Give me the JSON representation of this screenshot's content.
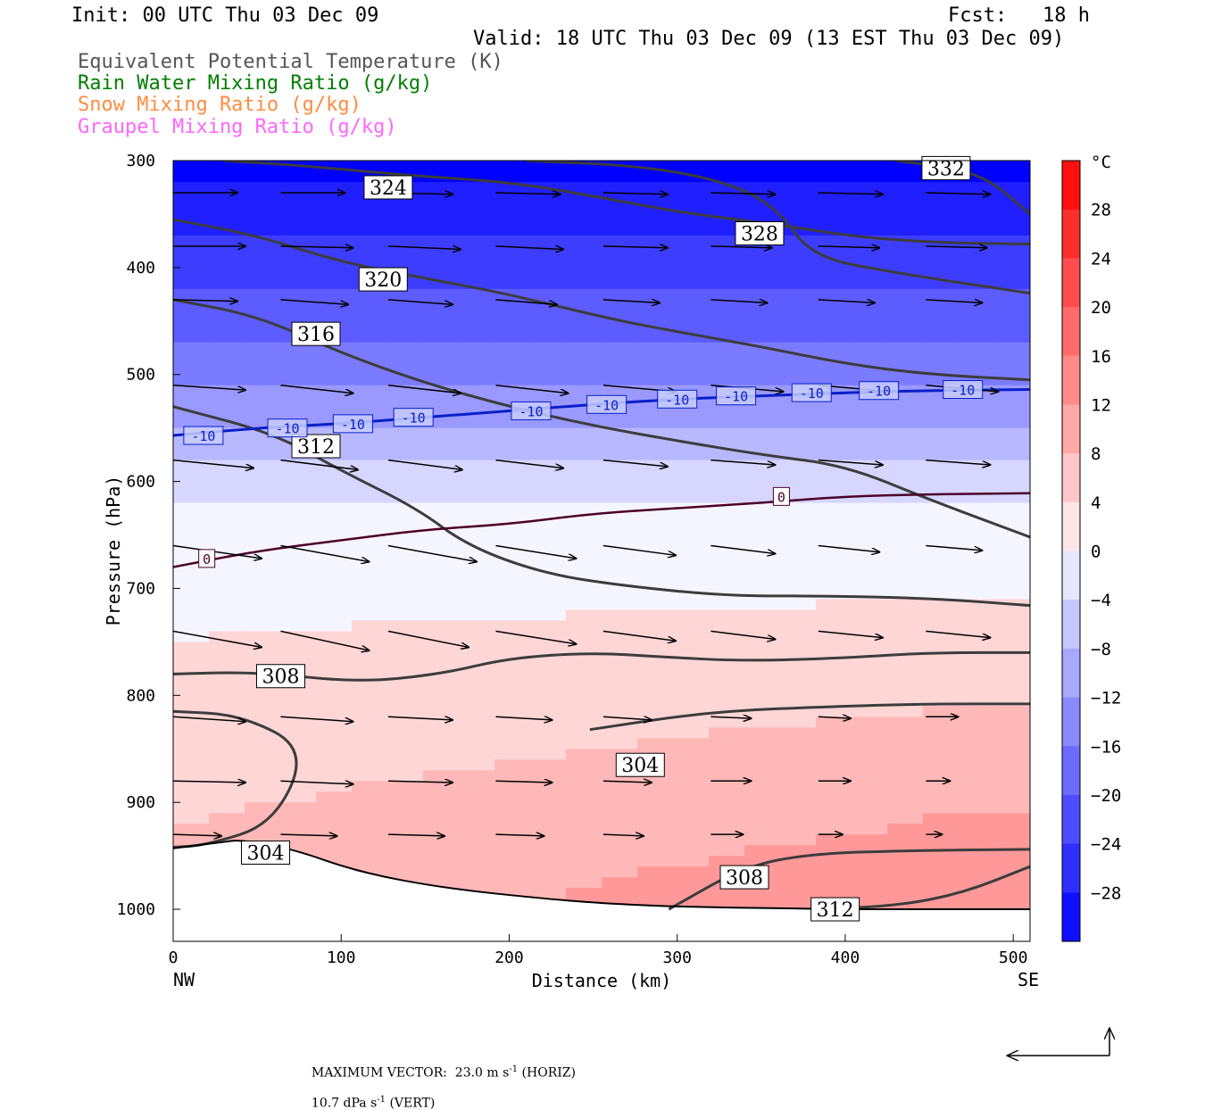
{
  "header": {
    "init": "Init: 00 UTC Thu 03 Dec 09",
    "fcst": "Fcst:   18 h",
    "valid": "Valid: 18 UTC Thu 03 Dec 09 (13 EST Thu 03 Dec 09)"
  },
  "legend": [
    {
      "text": "Equivalent Potential Temperature (K)",
      "color": "#555555"
    },
    {
      "text": "Rain Water Mixing Ratio (g/kg)",
      "color": "#007f00"
    },
    {
      "text": "Snow Mixing Ratio (g/kg)",
      "color": "#ff8c40"
    },
    {
      "text": "Graupel Mixing Ratio (g/kg)",
      "color": "#ff66ff"
    }
  ],
  "footer": {
    "max_label": "MAXIMUM VECTOR:",
    "horiz_value": "23.0 m s",
    "horiz_exp": "-1",
    "horiz_tag": " (HORIZ)",
    "vert_value": "10.7 dPa s",
    "vert_exp": "-1",
    "vert_tag": " (VERT)"
  },
  "chart_data": {
    "type": "cross-section",
    "xlabel": "Distance (km)",
    "ylabel": "Pressure (hPa)",
    "x_ticks": [
      0,
      100,
      200,
      300,
      400,
      500
    ],
    "y_ticks": [
      300,
      400,
      500,
      600,
      700,
      800,
      900,
      1000
    ],
    "xlim": [
      0,
      510
    ],
    "ylim": [
      300,
      1030
    ],
    "x_end_labels": {
      "left": "NW",
      "right": "SE"
    },
    "colorbar": {
      "unit": "°C",
      "labels": [
        28,
        24,
        20,
        16,
        12,
        8,
        4,
        0,
        -4,
        -8,
        -12,
        -16,
        -20,
        -24,
        -28
      ],
      "range": [
        -32,
        32
      ]
    },
    "temperature_field": {
      "cold_levels": [
        [
          300,
          -32
        ],
        [
          450,
          -20
        ],
        [
          550,
          -10
        ],
        [
          600,
          -3
        ],
        [
          660,
          0
        ]
      ],
      "surface_warm_max": 14
    },
    "isotherms": [
      {
        "value": -10,
        "color": "#0a1ec8",
        "points": [
          [
            0,
            557
          ],
          [
            50,
            550
          ],
          [
            100,
            546
          ],
          [
            150,
            540
          ],
          [
            200,
            534
          ],
          [
            250,
            528
          ],
          [
            300,
            523
          ],
          [
            350,
            520
          ],
          [
            400,
            517
          ],
          [
            450,
            515
          ],
          [
            510,
            514
          ]
        ],
        "labels": [
          [
            18,
            557
          ],
          [
            68,
            550
          ],
          [
            107,
            546
          ],
          [
            143,
            540
          ],
          [
            213,
            534
          ],
          [
            258,
            528
          ],
          [
            300,
            523
          ],
          [
            335,
            520
          ],
          [
            380,
            517
          ],
          [
            420,
            515
          ],
          [
            470,
            514
          ]
        ]
      },
      {
        "value": 0,
        "color": "#4b0028",
        "points": [
          [
            0,
            680
          ],
          [
            50,
            665
          ],
          [
            100,
            655
          ],
          [
            150,
            645
          ],
          [
            200,
            640
          ],
          [
            250,
            630
          ],
          [
            300,
            625
          ],
          [
            350,
            620
          ],
          [
            400,
            614
          ],
          [
            450,
            612
          ],
          [
            510,
            611
          ]
        ],
        "labels": [
          [
            20,
            672
          ],
          [
            362,
            614
          ]
        ]
      }
    ],
    "theta_e": [
      {
        "value": 324,
        "points": [
          [
            30,
            300
          ],
          [
            80,
            305
          ],
          [
            140,
            314
          ],
          [
            200,
            320
          ],
          [
            250,
            333
          ],
          [
            300,
            348
          ],
          [
            360,
            360
          ],
          [
            410,
            372
          ],
          [
            460,
            377
          ],
          [
            510,
            378
          ]
        ],
        "label_at": [
          128,
          325
        ]
      },
      {
        "value": 320,
        "points": [
          [
            0,
            355
          ],
          [
            50,
            370
          ],
          [
            100,
            395
          ],
          [
            150,
            410
          ],
          [
            200,
            425
          ],
          [
            260,
            448
          ],
          [
            300,
            460
          ],
          [
            350,
            474
          ],
          [
            400,
            490
          ],
          [
            450,
            500
          ],
          [
            510,
            505
          ]
        ],
        "label_at": [
          125,
          411
        ]
      },
      {
        "value": 316,
        "points": [
          [
            0,
            430
          ],
          [
            50,
            445
          ],
          [
            100,
            480
          ],
          [
            150,
            508
          ],
          [
            200,
            530
          ],
          [
            250,
            548
          ],
          [
            300,
            562
          ],
          [
            350,
            575
          ],
          [
            400,
            585
          ],
          [
            450,
            617
          ],
          [
            510,
            652
          ]
        ],
        "label_at": [
          85,
          462
        ]
      },
      {
        "value": 312,
        "points": [
          [
            0,
            530
          ],
          [
            60,
            555
          ],
          [
            100,
            590
          ],
          [
            145,
            625
          ],
          [
            175,
            660
          ],
          [
            220,
            686
          ],
          [
            270,
            698
          ],
          [
            330,
            707
          ],
          [
            380,
            707
          ],
          [
            450,
            709
          ],
          [
            510,
            716
          ]
        ],
        "label_at": [
          85,
          567
        ]
      },
      {
        "value": 308,
        "points": [
          [
            0,
            780
          ],
          [
            50,
            778
          ],
          [
            110,
            788
          ],
          [
            160,
            780
          ],
          [
            200,
            765
          ],
          [
            250,
            760
          ],
          [
            290,
            764
          ],
          [
            340,
            768
          ],
          [
            400,
            765
          ],
          [
            450,
            760
          ],
          [
            510,
            760
          ]
        ],
        "label_at": [
          64,
          782
        ]
      },
      {
        "value": 304,
        "points": [
          [
            0,
            815
          ],
          [
            40,
            818
          ],
          [
            80,
            850
          ],
          [
            60,
            920
          ],
          [
            20,
            940
          ],
          [
            0,
            942
          ]
        ],
        "label_at": [
          55,
          947
        ]
      },
      {
        "value": 304,
        "points": [
          [
            248,
            832
          ],
          [
            320,
            815
          ],
          [
            400,
            810
          ],
          [
            450,
            808
          ],
          [
            510,
            808
          ]
        ],
        "label_at": [
          278,
          865
        ]
      },
      {
        "value": 308,
        "points": [
          [
            295,
            1000
          ],
          [
            340,
            960
          ],
          [
            380,
            948
          ],
          [
            440,
            945
          ],
          [
            510,
            944
          ]
        ],
        "label_at": [
          340,
          970
        ]
      },
      {
        "value": 312,
        "points": [
          [
            380,
            1000
          ],
          [
            430,
            997
          ],
          [
            470,
            985
          ],
          [
            510,
            960
          ]
        ],
        "label_at": [
          394,
          1000
        ]
      },
      {
        "value": 332,
        "points": [
          [
            430,
            300
          ],
          [
            480,
            310
          ],
          [
            510,
            350
          ]
        ],
        "label_at": [
          460,
          307
        ]
      },
      {
        "value": 328,
        "points": [
          [
            210,
            300
          ],
          [
            280,
            305
          ],
          [
            330,
            320
          ],
          [
            360,
            345
          ],
          [
            380,
            390
          ],
          [
            430,
            405
          ],
          [
            510,
            424
          ]
        ],
        "label_at": [
          349,
          368
        ]
      }
    ],
    "surface": {
      "points": [
        [
          0,
          943
        ],
        [
          30,
          937
        ],
        [
          40,
          935
        ],
        [
          70,
          943
        ],
        [
          110,
          965
        ],
        [
          160,
          980
        ],
        [
          220,
          990
        ],
        [
          260,
          995
        ],
        [
          310,
          998
        ],
        [
          360,
          999
        ],
        [
          400,
          1000
        ],
        [
          450,
          1000
        ],
        [
          510,
          1000
        ]
      ]
    },
    "wind_vectors": {
      "x": [
        0,
        64,
        128,
        192,
        256,
        320,
        384,
        448
      ],
      "rows": [
        {
          "p": 330,
          "u": [
            40,
            40,
            40,
            40,
            40,
            40,
            40,
            40
          ],
          "w": [
            0,
            0,
            1,
            1,
            1,
            1,
            1,
            1
          ]
        },
        {
          "p": 380,
          "u": [
            45,
            45,
            45,
            42,
            40,
            38,
            38,
            38
          ],
          "w": [
            0,
            1,
            2,
            2,
            1,
            1,
            1,
            1
          ]
        },
        {
          "p": 430,
          "u": [
            40,
            42,
            40,
            38,
            35,
            35,
            35,
            35
          ],
          "w": [
            1,
            3,
            3,
            3,
            2,
            2,
            2,
            2
          ]
        },
        {
          "p": 510,
          "u": [
            45,
            45,
            45,
            45,
            45,
            45,
            45,
            45
          ],
          "w": [
            3,
            5,
            5,
            5,
            4,
            4,
            4,
            4
          ]
        },
        {
          "p": 580,
          "u": [
            50,
            48,
            46,
            42,
            40,
            40,
            40,
            40
          ],
          "w": [
            5,
            6,
            6,
            5,
            4,
            3,
            3,
            3
          ]
        },
        {
          "p": 660,
          "u": [
            55,
            55,
            55,
            50,
            45,
            40,
            38,
            35
          ],
          "w": [
            8,
            10,
            10,
            8,
            6,
            5,
            4,
            3
          ]
        },
        {
          "p": 740,
          "u": [
            55,
            55,
            50,
            50,
            45,
            40,
            40,
            40
          ],
          "w": [
            10,
            12,
            10,
            8,
            6,
            5,
            4,
            4
          ]
        },
        {
          "p": 820,
          "u": [
            45,
            45,
            40,
            35,
            30,
            25,
            20,
            20
          ],
          "w": [
            3,
            3,
            2,
            2,
            2,
            1,
            1,
            0
          ]
        },
        {
          "p": 880,
          "u": [
            45,
            45,
            40,
            35,
            30,
            25,
            20,
            15
          ],
          "w": [
            1,
            2,
            1,
            1,
            1,
            0,
            0,
            0
          ]
        },
        {
          "p": 930,
          "u": [
            30,
            35,
            35,
            30,
            25,
            20,
            15,
            10
          ],
          "w": [
            1,
            1,
            1,
            1,
            1,
            0,
            0,
            0
          ]
        }
      ]
    },
    "max_vector": {
      "horiz": 23.0,
      "vert": 10.7
    }
  }
}
